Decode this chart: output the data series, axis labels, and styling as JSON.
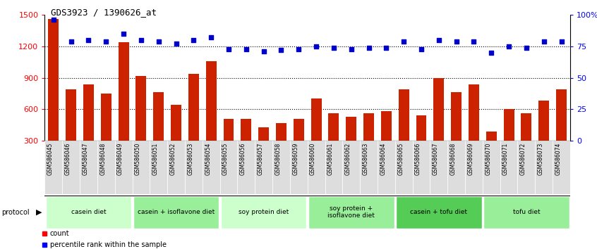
{
  "title": "GDS3923 / 1390626_at",
  "samples": [
    "GSM586045",
    "GSM586046",
    "GSM586047",
    "GSM586048",
    "GSM586049",
    "GSM586050",
    "GSM586051",
    "GSM586052",
    "GSM586053",
    "GSM586054",
    "GSM586055",
    "GSM586056",
    "GSM586057",
    "GSM586058",
    "GSM586059",
    "GSM586060",
    "GSM586061",
    "GSM586062",
    "GSM586063",
    "GSM586064",
    "GSM586065",
    "GSM586066",
    "GSM586067",
    "GSM586068",
    "GSM586069",
    "GSM586070",
    "GSM586071",
    "GSM586072",
    "GSM586073",
    "GSM586074"
  ],
  "counts": [
    1460,
    790,
    840,
    750,
    1240,
    920,
    760,
    640,
    940,
    1060,
    510,
    510,
    430,
    470,
    510,
    700,
    560,
    530,
    560,
    580,
    790,
    540,
    900,
    760,
    840,
    390,
    600,
    560,
    680,
    790
  ],
  "percentile_ranks": [
    96,
    79,
    80,
    79,
    85,
    80,
    79,
    77,
    80,
    82,
    73,
    73,
    71,
    72,
    73,
    75,
    74,
    73,
    74,
    74,
    79,
    73,
    80,
    79,
    79,
    70,
    75,
    74,
    79,
    79
  ],
  "groups": [
    {
      "label": "casein diet",
      "start": 0,
      "end": 5,
      "color": "#ccffcc"
    },
    {
      "label": "casein + isoflavone diet",
      "start": 5,
      "end": 10,
      "color": "#99ee99"
    },
    {
      "label": "soy protein diet",
      "start": 10,
      "end": 15,
      "color": "#ccffcc"
    },
    {
      "label": "soy protein +\nisoflavone diet",
      "start": 15,
      "end": 20,
      "color": "#99ee99"
    },
    {
      "label": "casein + tofu diet",
      "start": 20,
      "end": 25,
      "color": "#55cc55"
    },
    {
      "label": "tofu diet",
      "start": 25,
      "end": 30,
      "color": "#99ee99"
    }
  ],
  "ylim_left": [
    300,
    1500
  ],
  "ylim_right": [
    0,
    100
  ],
  "yticks_left": [
    300,
    600,
    900,
    1200,
    1500
  ],
  "yticks_right": [
    0,
    25,
    50,
    75,
    100
  ],
  "ytick_right_labels": [
    "0",
    "25",
    "50",
    "75",
    "100%"
  ],
  "bar_color": "#cc2200",
  "scatter_color": "#0000cc",
  "bar_width": 0.6
}
